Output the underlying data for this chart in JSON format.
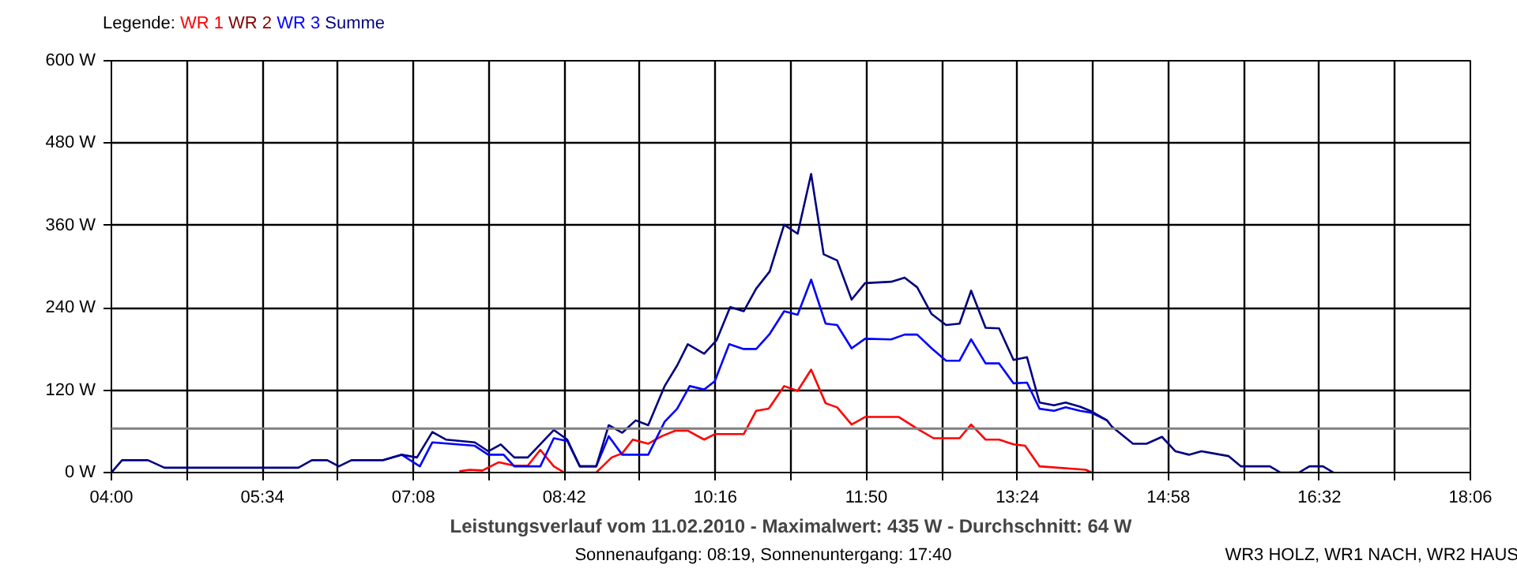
{
  "chart_data": {
    "type": "line",
    "title": "Leistungsverlauf vom 11.02.2010 - Maximalwert: 435 W - Durchschnitt: 64 W",
    "subtitle": "Sonnenaufgang: 08:19, Sonnenuntergang: 17:40",
    "annotations": [
      "WR3 HOLZ, WR1 NACH, WR2 HAUS"
    ],
    "legend_title": "Legende:",
    "grid": true,
    "line_style": "solid",
    "xlim": [
      4,
      18.1
    ],
    "xticks": [
      {
        "value": 4,
        "label": "04:00"
      },
      {
        "value": 4.7833,
        "label": null
      },
      {
        "value": 5.5667,
        "label": "05:34"
      },
      {
        "value": 6.35,
        "label": null
      },
      {
        "value": 7.1333,
        "label": "07:08"
      },
      {
        "value": 7.9167,
        "label": null
      },
      {
        "value": 8.7,
        "label": "08:42"
      },
      {
        "value": 9.4833,
        "label": null
      },
      {
        "value": 10.2667,
        "label": "10:16"
      },
      {
        "value": 11.05,
        "label": null
      },
      {
        "value": 11.8333,
        "label": "11:50"
      },
      {
        "value": 12.6167,
        "label": null
      },
      {
        "value": 13.4,
        "label": "13:24"
      },
      {
        "value": 14.1833,
        "label": null
      },
      {
        "value": 14.9667,
        "label": "14:58"
      },
      {
        "value": 15.75,
        "label": null
      },
      {
        "value": 16.5333,
        "label": "16:32"
      },
      {
        "value": 17.3167,
        "label": null
      },
      {
        "value": 18.1,
        "label": "18:06"
      }
    ],
    "ylim": [
      0,
      600
    ],
    "yticks": [
      {
        "value": 0,
        "label": "0 W"
      },
      {
        "value": 120,
        "label": "120 W"
      },
      {
        "value": 240,
        "label": "240 W"
      },
      {
        "value": 360,
        "label": "360 W"
      },
      {
        "value": 480,
        "label": "480 W"
      },
      {
        "value": 600,
        "label": "600 W"
      }
    ],
    "ref_lines": [
      {
        "axis": "y",
        "value": 64,
        "label": null,
        "color": "#808080"
      }
    ],
    "series": [
      {
        "name": "WR 1",
        "color": "#ff0000",
        "x": [
          7.61,
          7.72,
          7.85,
          8.02,
          8.18,
          8.32,
          8.45,
          8.59,
          8.7,
          9.03,
          9.19,
          9.3,
          9.41,
          9.57,
          9.71,
          9.85,
          9.98,
          10.15,
          10.26,
          10.56,
          10.69,
          10.82,
          10.98,
          11.12,
          11.26,
          11.41,
          11.53,
          11.68,
          11.82,
          12.17,
          12.36,
          12.53,
          12.8,
          12.92,
          13.07,
          13.21,
          13.36,
          13.48,
          13.63,
          14.11,
          14.17
        ],
        "values": [
          2,
          4,
          3,
          15,
          10,
          10,
          33,
          9,
          0,
          0,
          22,
          28,
          48,
          42,
          53,
          61,
          61,
          48,
          56,
          56,
          90,
          93,
          126,
          119,
          150,
          101,
          95,
          70,
          81,
          81,
          64,
          50,
          50,
          70,
          48,
          48,
          41,
          39,
          9,
          4,
          0
        ]
      },
      {
        "name": "WR 2",
        "color": "#800000"
      },
      {
        "name": "WR 3",
        "color": "#0000ff",
        "x": [
          6.82,
          7.01,
          7.2,
          7.33,
          7.77,
          7.91,
          8.07,
          8.18,
          8.45,
          8.59,
          8.73,
          8.86,
          9.03,
          9.16,
          9.3,
          9.41,
          9.57,
          9.74,
          9.87,
          10.0,
          10.15,
          10.26,
          10.41,
          10.56,
          10.69,
          10.83,
          10.98,
          11.12,
          11.26,
          11.41,
          11.53,
          11.68,
          11.82,
          12.09,
          12.23,
          12.36,
          12.51,
          12.66,
          12.8,
          12.92,
          13.07,
          13.21,
          13.36,
          13.5,
          13.63,
          13.78,
          13.9,
          14.05,
          14.17,
          14.33
        ],
        "values": [
          18,
          26,
          9,
          44,
          39,
          26,
          26,
          9,
          9,
          50,
          46,
          9,
          9,
          53,
          26,
          26,
          26,
          74,
          93,
          126,
          121,
          133,
          187,
          180,
          180,
          202,
          235,
          230,
          281,
          217,
          215,
          181,
          195,
          194,
          201,
          201,
          181,
          163,
          163,
          194,
          159,
          159,
          130,
          131,
          93,
          90,
          95,
          90,
          87,
          76
        ]
      },
      {
        "name": "Summe",
        "color": "#000080",
        "x": [
          4.0,
          4.11,
          4.38,
          4.55,
          5.94,
          6.08,
          6.24,
          6.36,
          6.49,
          6.82,
          7.01,
          7.17,
          7.33,
          7.47,
          7.77,
          7.91,
          8.04,
          8.18,
          8.32,
          8.59,
          8.73,
          8.86,
          9.03,
          9.16,
          9.3,
          9.44,
          9.57,
          9.74,
          9.87,
          9.98,
          10.15,
          10.28,
          10.42,
          10.56,
          10.69,
          10.83,
          10.98,
          11.12,
          11.26,
          11.39,
          11.53,
          11.68,
          11.82,
          12.09,
          12.23,
          12.36,
          12.51,
          12.66,
          12.8,
          12.92,
          13.07,
          13.21,
          13.36,
          13.5,
          13.63,
          13.78,
          13.9,
          14.05,
          14.17,
          14.33,
          14.38,
          14.6,
          14.74,
          14.9,
          15.04,
          15.18,
          15.31,
          15.59,
          15.72,
          16.02,
          16.13,
          16.32,
          16.43,
          16.57,
          16.68
        ],
        "values": [
          0,
          18,
          18,
          7,
          7,
          18,
          18,
          9,
          18,
          18,
          26,
          22,
          59,
          48,
          44,
          31,
          41,
          22,
          22,
          62,
          48,
          9,
          9,
          69,
          58,
          76,
          69,
          126,
          156,
          187,
          173,
          193,
          241,
          235,
          268,
          293,
          361,
          348,
          435,
          318,
          309,
          252,
          276,
          278,
          284,
          270,
          231,
          215,
          217,
          265,
          211,
          210,
          164,
          168,
          102,
          98,
          102,
          96,
          89,
          76,
          67,
          42,
          42,
          52,
          31,
          26,
          31,
          24,
          9,
          9,
          0,
          0,
          9,
          9,
          0
        ]
      }
    ]
  }
}
